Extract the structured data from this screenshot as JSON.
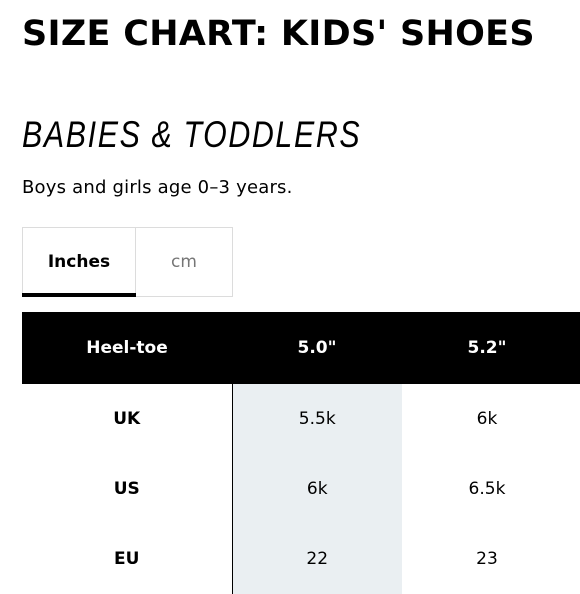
{
  "page_title": "SIZE CHART: KIDS' SHOES",
  "section_title": "BABIES & TODDLERS",
  "subtitle": "Boys and girls age 0–3 years.",
  "unit_tabs": [
    {
      "label": "Inches",
      "selected": true
    },
    {
      "label": "cm",
      "selected": false
    }
  ],
  "table": {
    "header": [
      "Heel-toe",
      "5.0\"",
      "5.2\""
    ],
    "highlighted_column": 1,
    "rows": [
      {
        "label": "UK",
        "values": [
          "5.5k",
          "6k"
        ]
      },
      {
        "label": "US",
        "values": [
          "6k",
          "6.5k"
        ]
      },
      {
        "label": "EU",
        "values": [
          "22",
          "23"
        ]
      }
    ]
  },
  "colors": {
    "header_bg": "#000000",
    "header_text": "#ffffff",
    "highlight_bg": "#eaeff2",
    "inactive_tab_text": "#767676"
  }
}
